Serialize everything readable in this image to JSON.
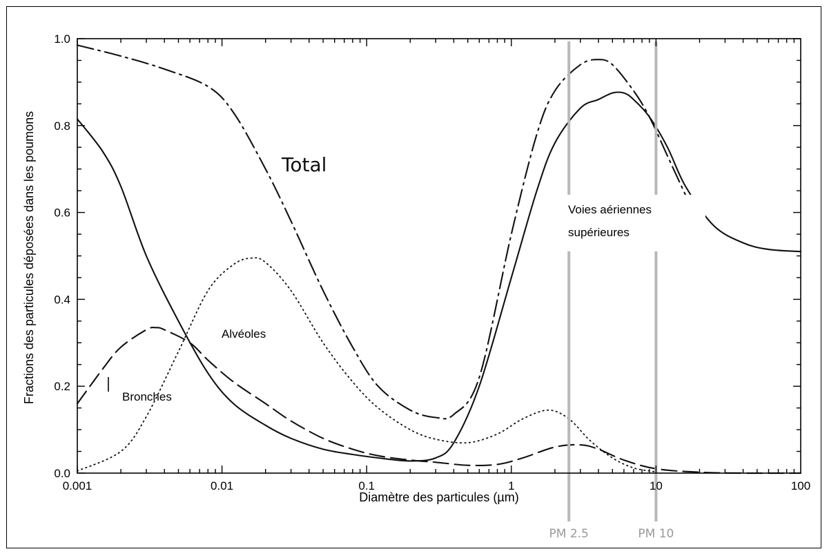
{
  "chart_data": {
    "type": "line",
    "xscale": "log",
    "xlim": [
      0.001,
      100
    ],
    "ylim": [
      0.0,
      1.0
    ],
    "xlabel": "Diamètre des particules (µm)",
    "ylabel": "Fractions  des particules déposées dans les poumons",
    "x_ticks": [
      "0.001",
      "0.01",
      "0.1",
      "1",
      "10",
      "100"
    ],
    "y_ticks": [
      "0.0",
      "0.2",
      "0.4",
      "0.6",
      "0.8",
      "1.0"
    ],
    "grid": false,
    "series": [
      {
        "name": "Total",
        "style": "dash-dot",
        "x": [
          0.001,
          0.002,
          0.004,
          0.008,
          0.012,
          0.02,
          0.03,
          0.05,
          0.08,
          0.12,
          0.2,
          0.3,
          0.4,
          0.6,
          1,
          1.5,
          2,
          3,
          4,
          5,
          7,
          9,
          12,
          16
        ],
        "y": [
          0.985,
          0.96,
          0.93,
          0.89,
          0.83,
          0.7,
          0.58,
          0.42,
          0.29,
          0.2,
          0.145,
          0.128,
          0.135,
          0.22,
          0.55,
          0.78,
          0.88,
          0.94,
          0.952,
          0.94,
          0.88,
          0.82,
          0.73,
          0.64
        ]
      },
      {
        "name": "Voies aériennes supérieures",
        "style": "solid",
        "x": [
          0.001,
          0.0015,
          0.002,
          0.003,
          0.005,
          0.008,
          0.012,
          0.02,
          0.03,
          0.05,
          0.08,
          0.12,
          0.2,
          0.3,
          0.4,
          0.6,
          1,
          1.5,
          2,
          3,
          4,
          5,
          6,
          7,
          9,
          12,
          16,
          25,
          40,
          60,
          100
        ],
        "y": [
          0.815,
          0.74,
          0.66,
          0.5,
          0.35,
          0.23,
          0.16,
          0.11,
          0.08,
          0.055,
          0.043,
          0.035,
          0.028,
          0.035,
          0.07,
          0.2,
          0.45,
          0.65,
          0.76,
          0.84,
          0.86,
          0.875,
          0.875,
          0.86,
          0.82,
          0.75,
          0.66,
          0.57,
          0.53,
          0.515,
          0.51
        ]
      },
      {
        "name": "Alvéoles",
        "style": "dotted",
        "x": [
          0.001,
          0.002,
          0.003,
          0.005,
          0.008,
          0.012,
          0.016,
          0.02,
          0.03,
          0.05,
          0.08,
          0.12,
          0.2,
          0.3,
          0.5,
          0.8,
          1.2,
          1.8,
          2.5,
          3.5,
          5,
          7,
          10
        ],
        "y": [
          0.005,
          0.05,
          0.13,
          0.28,
          0.42,
          0.48,
          0.495,
          0.485,
          0.42,
          0.3,
          0.21,
          0.15,
          0.1,
          0.078,
          0.07,
          0.09,
          0.125,
          0.145,
          0.125,
          0.075,
          0.035,
          0.012,
          0.003
        ]
      },
      {
        "name": "Bronches",
        "style": "dashed",
        "x": [
          0.001,
          0.0015,
          0.002,
          0.003,
          0.0035,
          0.004,
          0.006,
          0.008,
          0.012,
          0.02,
          0.03,
          0.05,
          0.08,
          0.12,
          0.2,
          0.3,
          0.5,
          0.8,
          1.2,
          2,
          3,
          4,
          6,
          10,
          20,
          40,
          100
        ],
        "y": [
          0.16,
          0.24,
          0.29,
          0.33,
          0.335,
          0.33,
          0.3,
          0.26,
          0.21,
          0.16,
          0.12,
          0.08,
          0.055,
          0.04,
          0.03,
          0.025,
          0.018,
          0.02,
          0.035,
          0.06,
          0.065,
          0.055,
          0.03,
          0.01,
          0.002,
          0.0,
          0.0
        ]
      }
    ],
    "reference_lines": [
      {
        "label": "PM 2.5",
        "x": 2.5
      },
      {
        "label": "PM 10",
        "x": 10
      }
    ],
    "annotations": {
      "total": "Total",
      "voies_line1": "Voies aériennes",
      "voies_line2": "supérieures",
      "alveoles": "Alvéoles",
      "bronches": "Bronches"
    }
  }
}
